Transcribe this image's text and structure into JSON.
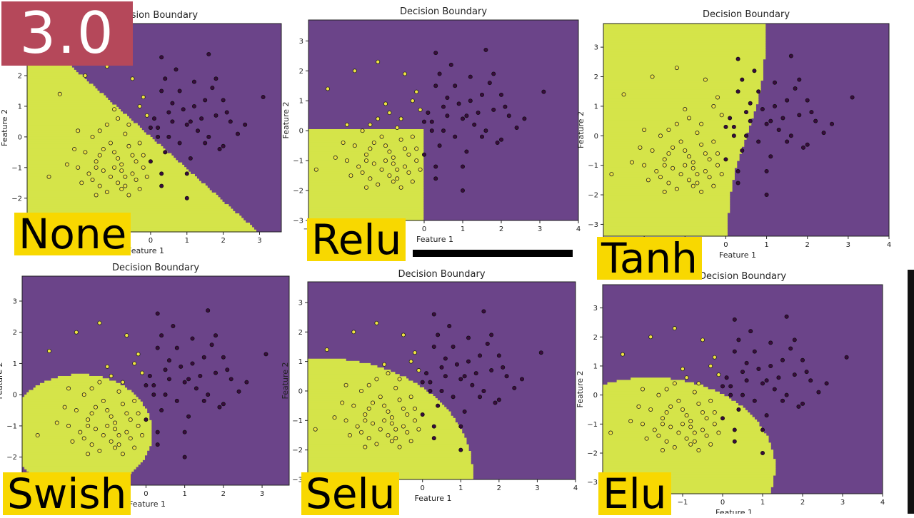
{
  "badge": "3.0",
  "labels": [
    "None",
    "Relu",
    "Tanh",
    "Swish",
    "Selu",
    "Elu"
  ],
  "colors": {
    "class0": "#f0e442",
    "class1": "#3a0a3e",
    "region0": "#d5e449",
    "region1": "#6b4489",
    "label_bg": "#f8d800",
    "badge_bg": "#b5485a"
  },
  "chart_data": [
    {
      "type": "scatter",
      "title": "Decision Boundary",
      "xlabel": "Feature 1",
      "ylabel": "Feature 2",
      "activation": "None",
      "xticks": [
        "0",
        "1",
        "2",
        "3"
      ],
      "yticks": [
        "−2",
        "−1",
        "0",
        "1",
        "2"
      ],
      "xlim": [
        -3.4,
        3.6
      ],
      "ylim": [
        -3.1,
        3.7
      ],
      "boundary": {
        "kind": "linear",
        "a": -1.05,
        "b": 0.0
      }
    },
    {
      "type": "scatter",
      "title": "Decision Boundary",
      "xlabel": "Feature 1",
      "ylabel": "Feature 2",
      "activation": "Relu",
      "xticks": [
        "−3",
        "−2",
        "−1",
        "0",
        "1",
        "2",
        "3",
        "4"
      ],
      "yticks": [
        "−3",
        "−2",
        "−1",
        "0",
        "1",
        "2",
        "3"
      ],
      "xlim": [
        -3.0,
        4.0
      ],
      "ylim": [
        -3.0,
        3.7
      ],
      "boundary": {
        "kind": "relu",
        "x0": 0.0,
        "y0": 0.05
      }
    },
    {
      "type": "scatter",
      "title": "Decision Boundary",
      "xlabel": "Feature 1",
      "ylabel": "Feature 2",
      "activation": "Tanh",
      "xticks": [
        "−3",
        "−2",
        "−1",
        "0",
        "1",
        "2",
        "3",
        "4"
      ],
      "yticks": [
        "−3",
        "−2",
        "−1",
        "0",
        "1",
        "2",
        "3"
      ],
      "xlim": [
        -3.0,
        4.0
      ],
      "ylim": [
        -3.4,
        3.8
      ],
      "boundary": {
        "kind": "tanh",
        "a": 0.5,
        "s": 1.9
      }
    },
    {
      "type": "scatter",
      "title": "Decision Boundary",
      "xlabel": "Feature 1",
      "ylabel": "Feature 2",
      "activation": "Swish",
      "xticks": [
        "−3",
        "−2",
        "−1",
        "0",
        "1",
        "2",
        "3"
      ],
      "yticks": [
        "−2",
        "−1",
        "0",
        "1",
        "2",
        "3"
      ],
      "xlim": [
        -3.2,
        3.7
      ],
      "ylim": [
        -2.9,
        3.8
      ],
      "boundary": {
        "kind": "circle",
        "cx": -1.7,
        "cy": -1.2,
        "r": 1.85
      }
    },
    {
      "type": "scatter",
      "title": "Decision Boundary",
      "xlabel": "Feature 1",
      "ylabel": "Feature 2",
      "activation": "Selu",
      "xticks": [
        "−3",
        "−2",
        "−1",
        "0",
        "1",
        "2",
        "3",
        "4"
      ],
      "yticks": [
        "−3",
        "−2",
        "−1",
        "0",
        "1",
        "2",
        "3"
      ],
      "xlim": [
        -3.0,
        4.0
      ],
      "ylim": [
        -3.0,
        3.7
      ],
      "boundary": {
        "kind": "circle",
        "cx": -2.6,
        "cy": -2.8,
        "r": 3.9
      }
    },
    {
      "type": "scatter",
      "title": "Decision Boundary",
      "xlabel": "Feature 1",
      "ylabel": "Feature 2",
      "activation": "Elu",
      "xticks": [
        "−1",
        "0",
        "1",
        "2",
        "3",
        "4"
      ],
      "yticks": [
        "−3",
        "−2",
        "−1",
        "0",
        "1",
        "2",
        "3"
      ],
      "xlim": [
        -3.0,
        4.0
      ],
      "ylim": [
        -3.4,
        3.8
      ],
      "boundary": {
        "kind": "circle",
        "cx": -1.8,
        "cy": -2.5,
        "r": 3.1
      }
    }
  ],
  "points": {
    "class0": [
      [
        -1.0,
        -0.5
      ],
      [
        -0.5,
        -1.2
      ],
      [
        -1.5,
        -0.8
      ],
      [
        -1.2,
        0.4
      ],
      [
        -0.9,
        -1.5
      ],
      [
        -0.6,
        -0.3
      ],
      [
        -1.3,
        -1.1
      ],
      [
        -0.7,
        0.1
      ],
      [
        -1.1,
        -0.2
      ],
      [
        -0.4,
        -0.8
      ],
      [
        -1.6,
        -1.4
      ],
      [
        -0.8,
        -1.7
      ],
      [
        -1.4,
        0.2
      ],
      [
        -0.2,
        -1.0
      ],
      [
        -1.8,
        -0.5
      ],
      [
        -0.6,
        -1.9
      ],
      [
        -1.0,
        0.9
      ],
      [
        -0.3,
        -0.2
      ],
      [
        -1.2,
        -1.8
      ],
      [
        -0.9,
        0.6
      ],
      [
        -1.7,
        -1.2
      ],
      [
        -0.5,
        -0.6
      ],
      [
        -1.3,
        -0.4
      ],
      [
        -0.8,
        -0.9
      ],
      [
        -2.3,
        -0.9
      ],
      [
        -2.1,
        -0.4
      ],
      [
        -1.5,
        -1.9
      ],
      [
        -1.9,
        -1.5
      ],
      [
        -0.7,
        -1.3
      ],
      [
        -1.1,
        -1.3
      ],
      [
        -0.4,
        -1.4
      ],
      [
        -0.2,
        -0.6
      ],
      [
        -1.0,
        -1.0
      ],
      [
        -0.6,
        0.4
      ],
      [
        -1.4,
        -0.6
      ],
      [
        -2.8,
        -1.3
      ],
      [
        -2.0,
        0.2
      ],
      [
        -2.5,
        1.4
      ],
      [
        -1.8,
        2.0
      ],
      [
        -1.2,
        2.3
      ],
      [
        -0.3,
        1.0
      ],
      [
        -0.1,
        0.7
      ],
      [
        -0.5,
        1.9
      ],
      [
        -0.2,
        1.3
      ],
      [
        -0.8,
        -1.1
      ],
      [
        -0.7,
        -1.6
      ],
      [
        -1.5,
        -1.0
      ],
      [
        -0.3,
        -1.7
      ],
      [
        -0.9,
        -0.7
      ],
      [
        -1.6,
        0.0
      ],
      [
        -0.1,
        -1.3
      ],
      [
        -1.4,
        -1.6
      ],
      [
        -2.0,
        -1.0
      ]
    ],
    "class1": [
      [
        0.5,
        0.8
      ],
      [
        1.0,
        0.4
      ],
      [
        0.3,
        1.5
      ],
      [
        1.5,
        1.2
      ],
      [
        0.8,
        -0.2
      ],
      [
        1.8,
        0.7
      ],
      [
        0.2,
        0.3
      ],
      [
        1.2,
        1.8
      ],
      [
        0.6,
        1.1
      ],
      [
        2.2,
        0.5
      ],
      [
        1.6,
        0.0
      ],
      [
        0.9,
        0.9
      ],
      [
        0.4,
        -0.5
      ],
      [
        1.3,
        0.2
      ],
      [
        2.0,
        1.2
      ],
      [
        0.7,
        2.2
      ],
      [
        1.1,
        -0.7
      ],
      [
        1.7,
        1.6
      ],
      [
        0.1,
        0.6
      ],
      [
        2.4,
        0.1
      ],
      [
        0.0,
        0.3
      ],
      [
        1.4,
        0.6
      ],
      [
        0.5,
        0.0
      ],
      [
        0.8,
        1.5
      ],
      [
        1.9,
        -0.4
      ],
      [
        2.6,
        0.4
      ],
      [
        1.0,
        -1.2
      ],
      [
        0.3,
        2.6
      ],
      [
        1.6,
        2.7
      ],
      [
        0.0,
        -0.8
      ],
      [
        0.3,
        -1.6
      ],
      [
        0.3,
        -1.2
      ],
      [
        1.0,
        -2.0
      ],
      [
        3.1,
        1.3
      ],
      [
        0.2,
        0.0
      ],
      [
        1.2,
        1.0
      ],
      [
        2.1,
        0.8
      ],
      [
        1.5,
        -0.2
      ],
      [
        0.6,
        0.5
      ],
      [
        1.8,
        1.9
      ],
      [
        0.4,
        1.9
      ],
      [
        2.0,
        -0.3
      ],
      [
        1.1,
        0.5
      ]
    ]
  }
}
